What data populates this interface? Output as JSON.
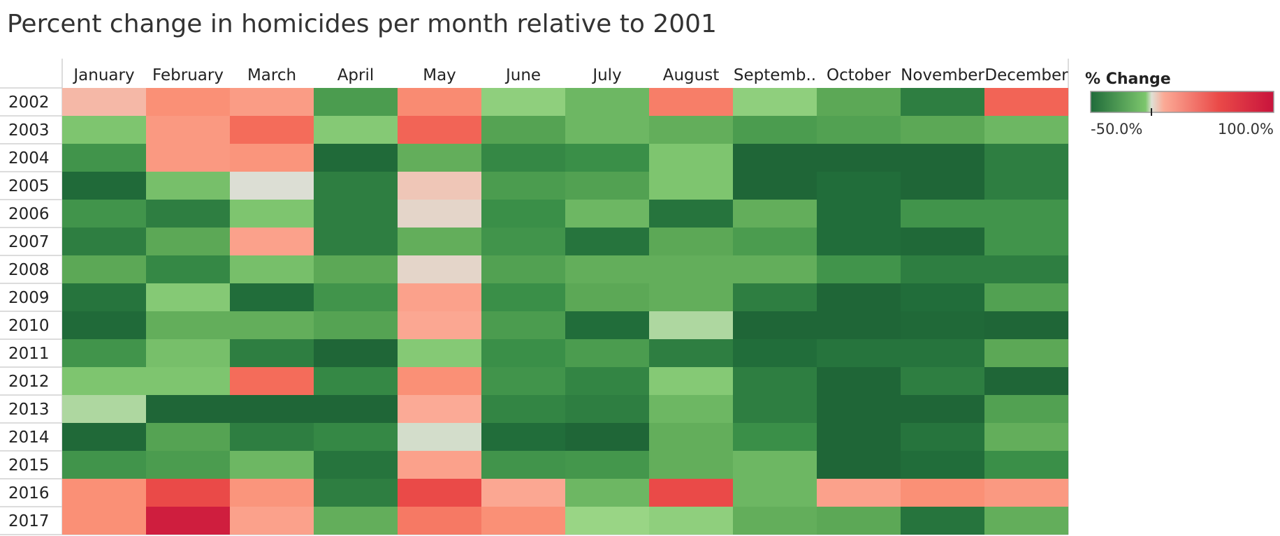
{
  "chart_data": {
    "type": "heatmap",
    "title": "Percent change in homicides per month relative to 2001",
    "x_categories": [
      "January",
      "February",
      "March",
      "April",
      "May",
      "June",
      "July",
      "August",
      "Septemb..",
      "October",
      "November",
      "December"
    ],
    "y_categories": [
      "2002",
      "2003",
      "2004",
      "2005",
      "2006",
      "2007",
      "2008",
      "2009",
      "2010",
      "2011",
      "2012",
      "2013",
      "2014",
      "2015",
      "2016",
      "2017"
    ],
    "values": [
      [
        15,
        35,
        28,
        -35,
        38,
        -15,
        -25,
        45,
        -15,
        -30,
        -45,
        60
      ],
      [
        -20,
        30,
        55,
        -18,
        60,
        -32,
        -25,
        -28,
        -35,
        -33,
        -30,
        -25
      ],
      [
        -38,
        30,
        32,
        -52,
        -28,
        -42,
        -40,
        -20,
        -55,
        -55,
        -55,
        -45
      ],
      [
        -52,
        -22,
        2,
        -45,
        10,
        -35,
        -33,
        -20,
        -55,
        -50,
        -55,
        -45
      ],
      [
        -38,
        -45,
        -20,
        -45,
        5,
        -40,
        -25,
        -48,
        -28,
        -50,
        -38,
        -38
      ],
      [
        -45,
        -30,
        25,
        -45,
        -28,
        -38,
        -48,
        -30,
        -35,
        -50,
        -53,
        -38
      ],
      [
        -30,
        -42,
        -22,
        -30,
        5,
        -33,
        -28,
        -28,
        -28,
        -38,
        -45,
        -45
      ],
      [
        -48,
        -18,
        -50,
        -38,
        25,
        -40,
        -30,
        -28,
        -45,
        -55,
        -50,
        -33
      ],
      [
        -52,
        -28,
        -28,
        -32,
        22,
        -35,
        -50,
        -8,
        -55,
        -55,
        -53,
        -55
      ],
      [
        -38,
        -22,
        -45,
        -55,
        -18,
        -40,
        -35,
        -45,
        -50,
        -48,
        -48,
        -30
      ],
      [
        -20,
        -20,
        55,
        -42,
        35,
        -38,
        -43,
        -18,
        -45,
        -55,
        -45,
        -55
      ],
      [
        -8,
        -55,
        -55,
        -55,
        20,
        -43,
        -45,
        -25,
        -45,
        -55,
        -55,
        -33
      ],
      [
        -53,
        -32,
        -45,
        -42,
        0,
        -50,
        -55,
        -28,
        -40,
        -55,
        -48,
        -28
      ],
      [
        -38,
        -35,
        -25,
        -48,
        25,
        -38,
        -37,
        -28,
        -25,
        -55,
        -50,
        -40
      ],
      [
        35,
        75,
        32,
        -45,
        75,
        22,
        -25,
        75,
        -25,
        25,
        35,
        30
      ],
      [
        35,
        95,
        25,
        -28,
        48,
        35,
        -12,
        -15,
        -28,
        -30,
        -48,
        -28
      ]
    ],
    "colorbar": {
      "title": "% Change",
      "min": -50,
      "max": 100,
      "min_label": "-50.0%",
      "max_label": "100.0%"
    }
  }
}
